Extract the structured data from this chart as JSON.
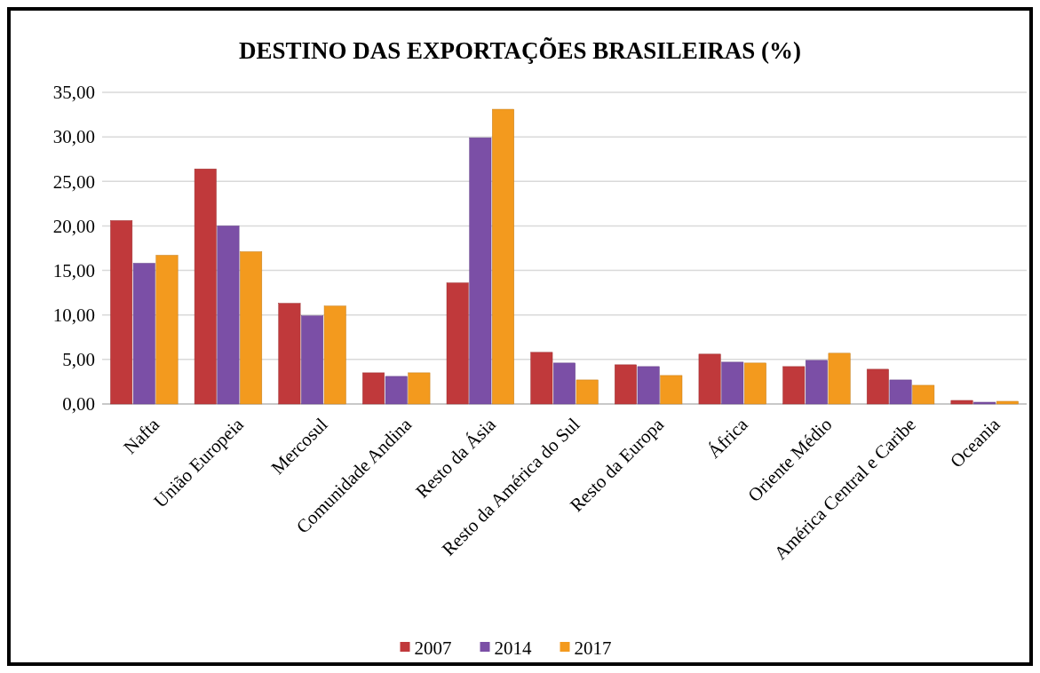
{
  "chart_data": {
    "type": "bar",
    "title": "DESTINO DAS EXPORTAÇÕES BRASILEIRAS (%)",
    "categories": [
      "Nafta",
      "União Europeia",
      "Mercosul",
      "Comunidade Andina",
      "Resto da Ásia",
      "Resto da América do Sul",
      "Resto da Europa",
      "África",
      "Oriente Médio",
      "América Central e Caribe",
      "Oceania"
    ],
    "series": [
      {
        "name": "2007",
        "color": "#c0393b",
        "values": [
          20.6,
          26.4,
          11.3,
          3.5,
          13.6,
          5.8,
          4.4,
          5.6,
          4.2,
          3.9,
          0.4
        ]
      },
      {
        "name": "2014",
        "color": "#7b4fa6",
        "values": [
          15.8,
          20.0,
          9.9,
          3.1,
          29.9,
          4.6,
          4.2,
          4.7,
          4.9,
          2.7,
          0.2
        ]
      },
      {
        "name": "2017",
        "color": "#f39a1e",
        "values": [
          16.7,
          17.1,
          11.0,
          3.5,
          33.1,
          2.7,
          3.2,
          4.6,
          5.7,
          2.1,
          0.3
        ]
      }
    ],
    "ylim": [
      0,
      35
    ],
    "yticks": [
      {
        "value": 0,
        "label": "0,00"
      },
      {
        "value": 5,
        "label": "5,00"
      },
      {
        "value": 10,
        "label": "10,00"
      },
      {
        "value": 15,
        "label": "15,00"
      },
      {
        "value": 20,
        "label": "20,00"
      },
      {
        "value": 25,
        "label": "25,00"
      },
      {
        "value": 30,
        "label": "30,00"
      },
      {
        "value": 35,
        "label": "35,00"
      }
    ],
    "grid": "y",
    "legend": "bottom"
  }
}
